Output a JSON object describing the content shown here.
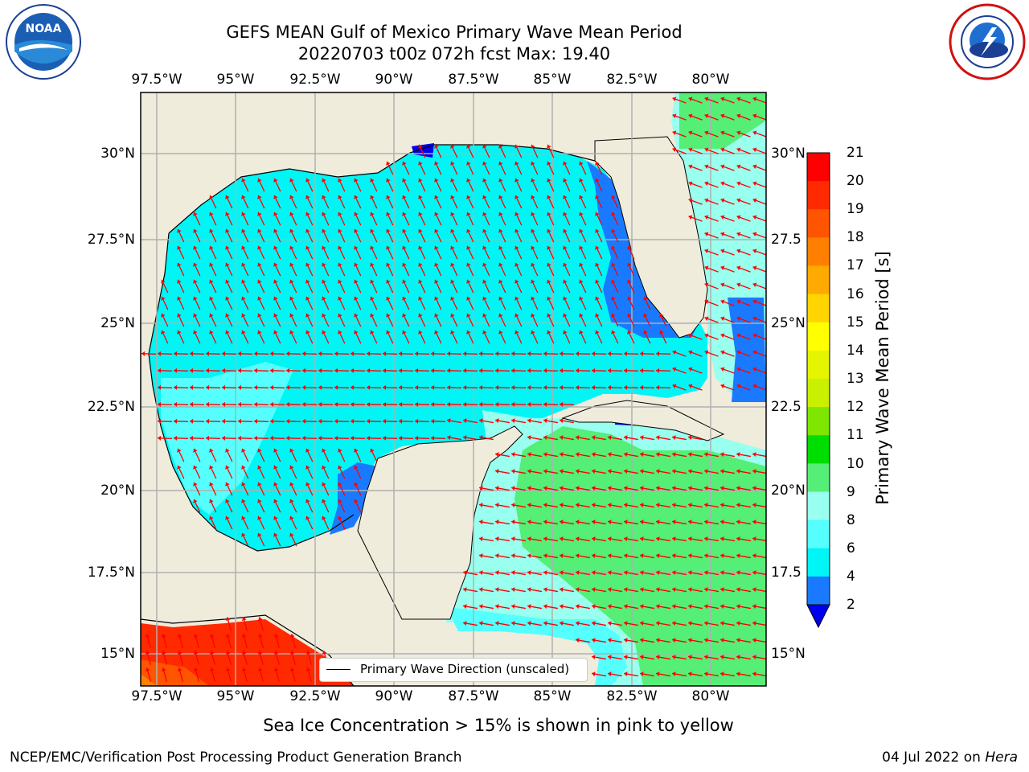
{
  "title": {
    "line1": "GEFS MEAN Gulf of Mexico Primary Wave Mean Period",
    "line2": "20220703 t00z 072h fcst   Max: 19.40"
  },
  "logos": {
    "left": {
      "icon": "noaa-logo-icon",
      "text": "NOAA"
    },
    "right": {
      "icon": "nws-logo-icon"
    }
  },
  "map": {
    "lon_labels": [
      "97.5°W",
      "95°W",
      "92.5°W",
      "90°W",
      "87.5°W",
      "85°W",
      "82.5°W",
      "80°W"
    ],
    "lat_labels_left": [
      "30°N",
      "27.5°N",
      "25°N",
      "22.5°N",
      "20°N",
      "17.5°N",
      "15°N"
    ],
    "lat_labels_right": [
      "30°N",
      "27.5",
      "25°N",
      "22.5",
      "20°N",
      "17.5",
      "15°N"
    ],
    "legend": "Primary Wave Direction (unscaled)",
    "land_color": "#efecdc",
    "arrow_color": "#ff0000"
  },
  "colorbar": {
    "label": "Primary Wave Mean Period [s]",
    "ticks": [
      "21",
      "20",
      "19",
      "18",
      "17",
      "16",
      "15",
      "14",
      "13",
      "12",
      "11",
      "10",
      "9",
      "8",
      "6",
      "4",
      "2"
    ],
    "colors": [
      "#ff0000",
      "#ff2a00",
      "#ff5500",
      "#ff8000",
      "#ffaa00",
      "#ffd400",
      "#ffff00",
      "#e5f500",
      "#c8f000",
      "#7ee600",
      "#00dd00",
      "#55ee77",
      "#99ffee",
      "#55ffff",
      "#00f5f5",
      "#1a7aff"
    ],
    "extend_color": "#0000ee"
  },
  "caption": "Sea Ice Concentration > 15% is shown in pink to yellow",
  "footer": {
    "left": "NCEP/EMC/Verification Post Processing Product Generation Branch",
    "date": "04 Jul 2022 on ",
    "machine": "Hera"
  }
}
